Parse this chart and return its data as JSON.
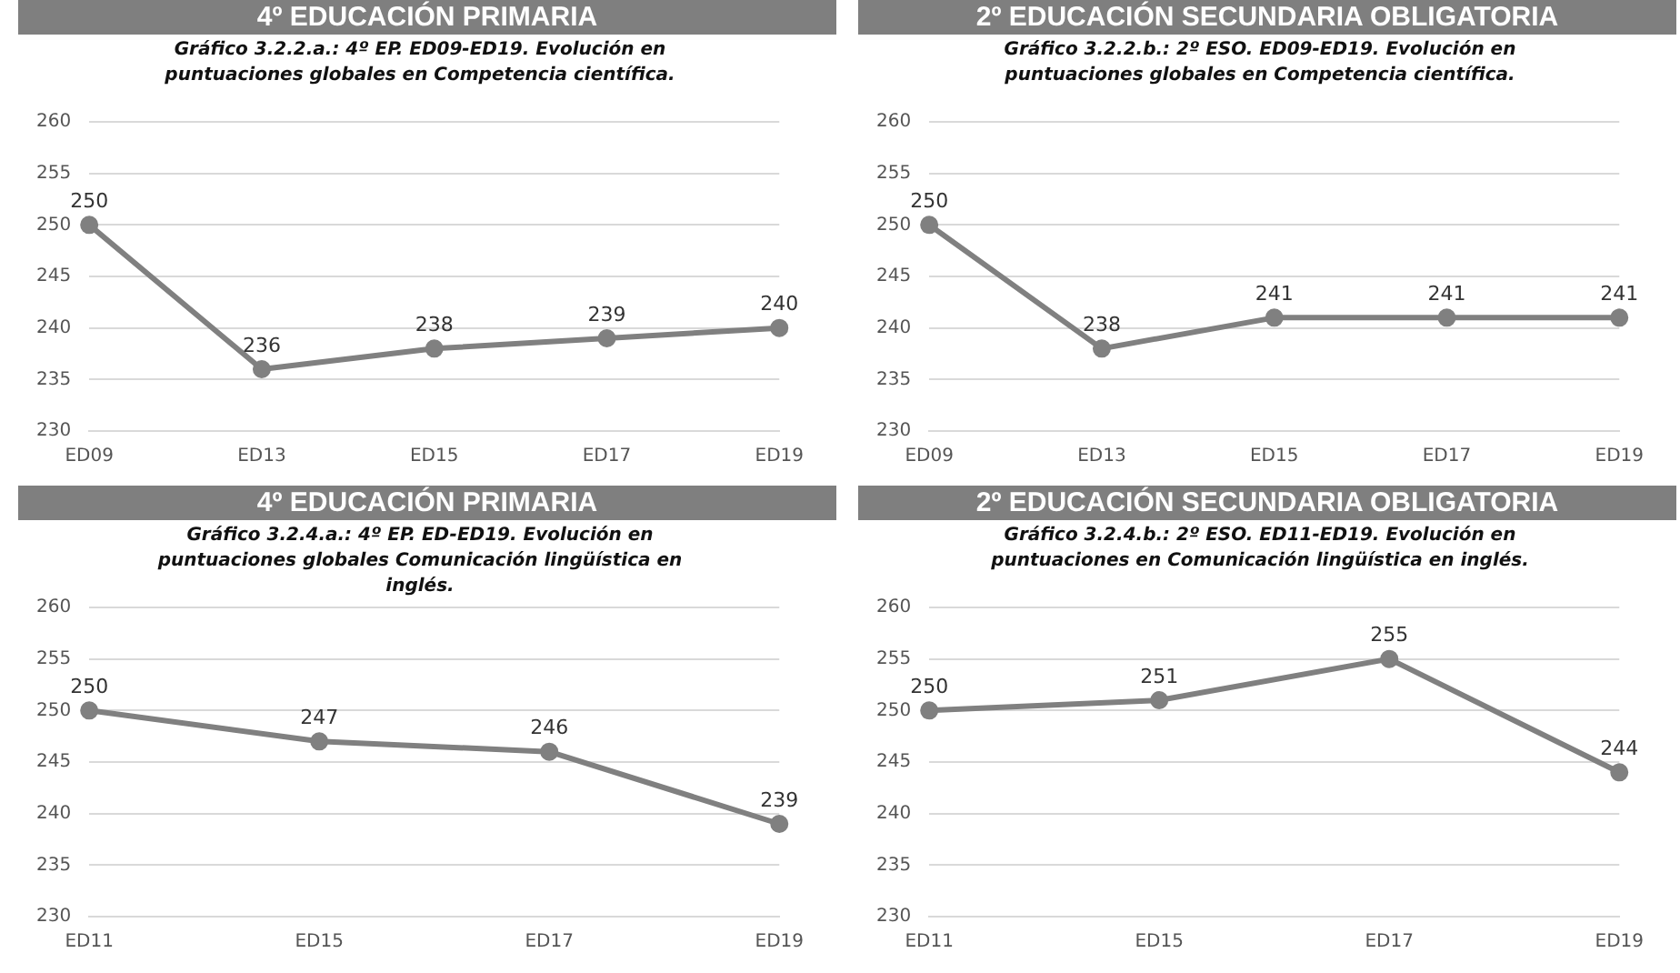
{
  "chart_data": [
    {
      "type": "line",
      "title": "4º EDUCACIÓN PRIMARIA",
      "subtitle": "Gráfico 3.2.2.a.: 4º EP. ED09-ED19. Evolución en puntuaciones globales en  Competencia científica.",
      "categories": [
        "ED09",
        "ED13",
        "ED15",
        "ED17",
        "ED19"
      ],
      "series": [
        {
          "color": "#808080",
          "values": [
            250,
            236,
            238,
            239,
            240
          ]
        }
      ],
      "ylim": [
        230,
        260
      ],
      "yticks": [
        230,
        235,
        240,
        245,
        250,
        255,
        260
      ],
      "grid": "y",
      "marker": "circle",
      "data_labels": true
    },
    {
      "type": "line",
      "title": "2º EDUCACIÓN SECUNDARIA OBLIGATORIA",
      "subtitle": "Gráfico 3.2.2.b.: 2º ESO. ED09-ED19. Evolución en puntuaciones globales  en Competencia científica.",
      "categories": [
        "ED09",
        "ED13",
        "ED15",
        "ED17",
        "ED19"
      ],
      "series": [
        {
          "color": "#808080",
          "values": [
            250,
            238,
            241,
            241,
            241
          ]
        }
      ],
      "ylim": [
        230,
        260
      ],
      "yticks": [
        230,
        235,
        240,
        245,
        250,
        255,
        260
      ],
      "grid": "y",
      "marker": "circle",
      "data_labels": true
    },
    {
      "type": "line",
      "title": "4º EDUCACIÓN PRIMARIA",
      "subtitle": "Gráfico 3.2.4.a.: 4º EP. ED-ED19. Evolución en puntuaciones globales Comunicación lingüística en inglés.",
      "categories": [
        "ED11",
        "ED15",
        "ED17",
        "ED19"
      ],
      "series": [
        {
          "color": "#808080",
          "values": [
            250,
            247,
            246,
            239
          ]
        }
      ],
      "ylim": [
        230,
        260
      ],
      "yticks": [
        230,
        235,
        240,
        245,
        250,
        255,
        260
      ],
      "grid": "y",
      "marker": "circle",
      "data_labels": true
    },
    {
      "type": "line",
      "title": "2º EDUCACIÓN SECUNDARIA OBLIGATORIA",
      "subtitle": "Gráfico 3.2.4.b.: 2º ESO. ED11-ED19. Evolución en puntuaciones en Comunicación lingüística en inglés.",
      "categories": [
        "ED11",
        "ED15",
        "ED17",
        "ED19"
      ],
      "series": [
        {
          "color": "#808080",
          "values": [
            250,
            251,
            255,
            244
          ]
        }
      ],
      "ylim": [
        230,
        260
      ],
      "yticks": [
        230,
        235,
        240,
        245,
        250,
        255,
        260
      ],
      "grid": "y",
      "marker": "circle",
      "data_labels": true
    }
  ]
}
